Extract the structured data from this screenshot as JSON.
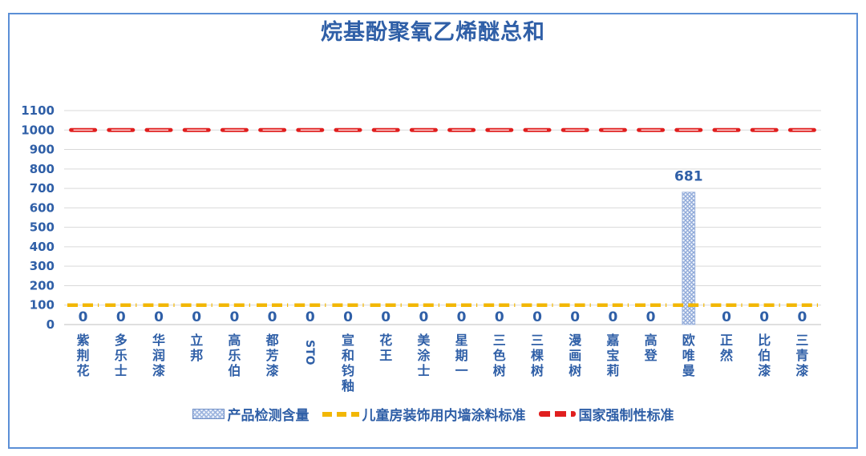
{
  "chart_data": {
    "type": "bar",
    "title": "烷基酚聚氧乙烯醚总和",
    "categories": [
      "紫荆花",
      "多乐士",
      "华润漆",
      "立邦",
      "高乐伯",
      "都芳漆",
      "STO",
      "宣和钧釉",
      "花王",
      "美涂士",
      "星期一",
      "三色树",
      "三棵树",
      "漫画树",
      "嘉宝莉",
      "高登",
      "欧唯曼",
      "正然",
      "比伯漆",
      "三青漆"
    ],
    "ylim": [
      0,
      1100
    ],
    "yticks": [
      0,
      100,
      200,
      300,
      400,
      500,
      600,
      700,
      800,
      900,
      1000,
      1100
    ],
    "grid": true,
    "legend_position": "bottom",
    "series": [
      {
        "name": "产品检测含量",
        "kind": "bar",
        "color": "#9fb6df",
        "values": [
          0,
          0,
          0,
          0,
          0,
          0,
          0,
          0,
          0,
          0,
          0,
          0,
          0,
          0,
          0,
          0,
          681,
          0,
          0,
          0
        ]
      },
      {
        "name": "儿童房装饰用内墙涂料标准",
        "kind": "line",
        "color": "#f2b705",
        "values": [
          100,
          100,
          100,
          100,
          100,
          100,
          100,
          100,
          100,
          100,
          100,
          100,
          100,
          100,
          100,
          100,
          100,
          100,
          100,
          100
        ]
      },
      {
        "name": "国家强制性标准",
        "kind": "line",
        "color": "#e01f1f",
        "values": [
          1000,
          1000,
          1000,
          1000,
          1000,
          1000,
          1000,
          1000,
          1000,
          1000,
          1000,
          1000,
          1000,
          1000,
          1000,
          1000,
          1000,
          1000,
          1000,
          1000
        ]
      }
    ],
    "data_labels": [
      "0",
      "0",
      "0",
      "0",
      "0",
      "0",
      "0",
      "0",
      "0",
      "0",
      "0",
      "0",
      "0",
      "0",
      "0",
      "0",
      "681",
      "0",
      "0",
      "0"
    ]
  },
  "legend": {
    "bar_label": "产品检测含量",
    "yellow_label": "儿童房装饰用内墙涂料标准",
    "red_label": "国家强制性标准"
  }
}
